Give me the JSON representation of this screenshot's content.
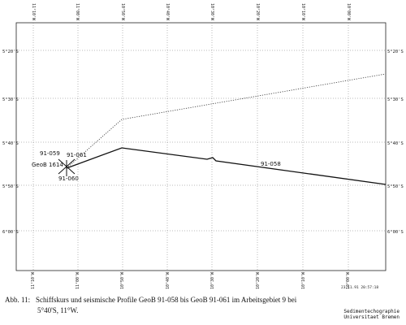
{
  "map": {
    "lat_labels_left": [
      "5°20'S",
      "5°30'S",
      "5°40'S",
      "5°50'S",
      "6°00'S"
    ],
    "lat_labels_right": [
      "5°20'S",
      "5°30'S",
      "5°40'S",
      "5°50'S",
      "6°00'S"
    ],
    "lon_labels_top": [
      "11°10'W",
      "11°00'W",
      "10°50'W",
      "10°40'W",
      "10°30'W",
      "10°20'W",
      "10°10'W",
      "10°00'W"
    ],
    "lon_labels_bottom": [
      "11°10'W",
      "11°00'W",
      "10°50'W",
      "10°40'W",
      "10°30'W",
      "10°20'W",
      "10°10'W",
      "10°00'W"
    ],
    "labels": {
      "station": "GeoB 1614",
      "p059": "91-059",
      "p061": "91-061",
      "p060": "91-060",
      "p058": "91-058"
    },
    "tracks": {
      "p058_solid": [
        [
          -11.0,
          -5.77
        ],
        [
          -10.83,
          -5.68
        ],
        [
          -10.0,
          -5.82
        ]
      ],
      "dotted": [
        [
          -11.0,
          -5.77
        ],
        [
          -10.83,
          -5.58
        ],
        [
          -10.0,
          -5.43
        ]
      ]
    }
  },
  "plot_date": "23.11.91 20:57:18",
  "caption": {
    "fig_label": "Abb. 11:",
    "line1": "Schiffskurs und seismische Profile GeoB 91-058 bis GeoB 91-061 im Arbeitsgebiet 9 bei",
    "line2": "5°40'S, 11°W."
  },
  "institute": {
    "line1": "Sedimentechographie",
    "line2": "Universitaet Bremen"
  }
}
